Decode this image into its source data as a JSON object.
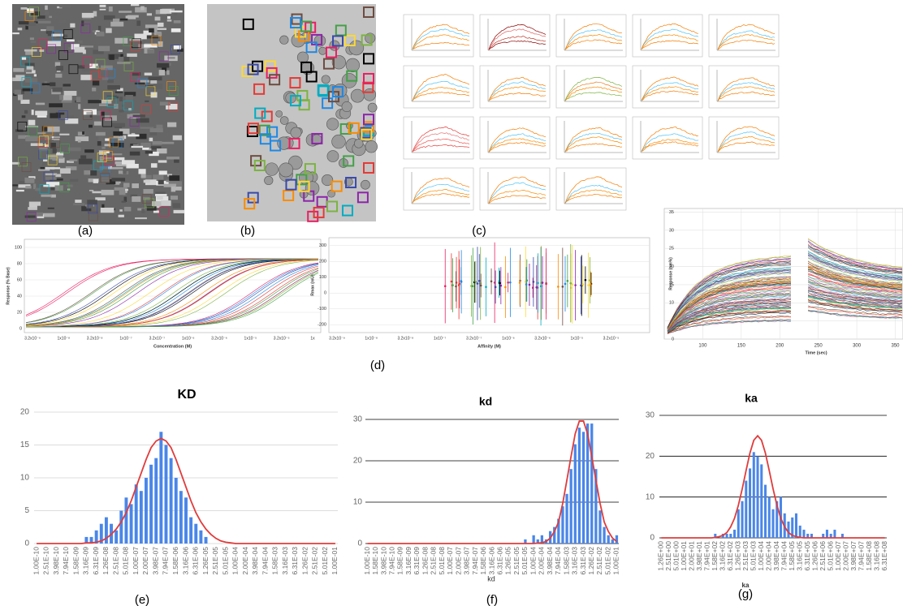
{
  "panels": {
    "a": "(a)",
    "b": "(b)",
    "c": "(c)",
    "d": "(d)",
    "e": "(e)",
    "f": "(f)",
    "g": "(g)"
  },
  "panel_d": [
    {
      "ylabel": "Response (% Base)",
      "xlabel": "Concentration (M)",
      "ylim": [
        -5,
        110
      ],
      "yticks": [
        0,
        20,
        40,
        60,
        80,
        100
      ],
      "xlabels": [
        "3.2x10⁻⁹",
        "1x10⁻⁸",
        "3.2x10⁻⁸",
        "1x10⁻⁷",
        "3.2x10⁻⁷",
        "1x10⁻⁶",
        "3.2x10⁻⁶",
        "1x10⁻⁵",
        "3.2x10⁻⁵",
        "1x"
      ]
    },
    {
      "ylabel": "Rmax (mU)",
      "xlabel": "Affinity (M)",
      "ylim": [
        -250,
        350
      ],
      "yticks": [
        -200,
        -100,
        0,
        100,
        200,
        300
      ],
      "xlabels": [
        "3.2x10⁻⁹",
        "1x10⁻⁸",
        "3.2x10⁻⁸",
        "1x10⁻⁷",
        "3.2x10⁻⁷",
        "1x10⁻⁶",
        "3.2x10⁻⁶",
        "1x10⁻⁵",
        "3.2x10⁻⁵"
      ]
    },
    {
      "ylabel": "Response (nm%)",
      "xlabel": "Time (sec)",
      "ylim": [
        0,
        36
      ],
      "yticks": [
        0,
        5,
        10,
        15,
        20,
        25,
        30,
        35
      ],
      "xlim": [
        50,
        360
      ],
      "xticks": [
        100,
        150,
        200,
        250,
        300,
        350
      ]
    }
  ],
  "chart_data": [
    {
      "type": "histogram",
      "title": "KD",
      "grid_color": "#d0d0d0",
      "ylim": [
        0,
        20
      ],
      "yticks": [
        0,
        5,
        10,
        15,
        20
      ],
      "categories": [
        "1.00E-10",
        null,
        "2.51E-10",
        null,
        "3.98E-10",
        null,
        "7.94E-10",
        null,
        "1.58E-09",
        null,
        "3.16E-09",
        null,
        "6.31E-09",
        null,
        "1.26E-08",
        null,
        "2.51E-08",
        null,
        "5.01E-08",
        null,
        "1.00E-07",
        null,
        "2.00E-07",
        null,
        "3.98E-07",
        null,
        "7.94E-07",
        null,
        "1.58E-06",
        null,
        "3.16E-06",
        null,
        "6.31E-06",
        null,
        "1.26E-05",
        null,
        "2.51E-05",
        null,
        "5.01E-05",
        null,
        "1.00E-04",
        null,
        "2.00E-04",
        null,
        "3.98E-04",
        null,
        "7.94E-04",
        null,
        "1.58E-03",
        null,
        "3.16E-03",
        null,
        "6.31E-03",
        null,
        "1.26E-02",
        null,
        "2.51E-02",
        null,
        "5.01E-02",
        null,
        "1.00E-01"
      ],
      "series": [
        {
          "color": "#4a86e8",
          "values": [
            0,
            0,
            0,
            0,
            0,
            0,
            0,
            0,
            0,
            0,
            1,
            1,
            2,
            3,
            4,
            3,
            2,
            5,
            7,
            6,
            9,
            8,
            10,
            12,
            13,
            17,
            15,
            13,
            10,
            8,
            7,
            4,
            3,
            2,
            1,
            0,
            0,
            0,
            0,
            0,
            0,
            0,
            0,
            0,
            0,
            0,
            0,
            0,
            0,
            0,
            0,
            0,
            0,
            0,
            0,
            0,
            0,
            0,
            0,
            0,
            0
          ]
        },
        {
          "color": "#e03c3c",
          "values": [
            0,
            0,
            0,
            0,
            0,
            0,
            0,
            0,
            0,
            0,
            0.1,
            0.1,
            0.2,
            0.4,
            0.8,
            1.4,
            2.2,
            3.3,
            4.7,
            6.5,
            8.6,
            10.7,
            12.8,
            14.6,
            15.6,
            16,
            15.6,
            14.6,
            12.8,
            10.7,
            8.6,
            6.5,
            4.7,
            3.3,
            2.2,
            1.4,
            0.8,
            0.4,
            0.2,
            0.1,
            0,
            0,
            0,
            0,
            0,
            0,
            0,
            0,
            0,
            0,
            0,
            0,
            0,
            0,
            0,
            0,
            0,
            0,
            0,
            0,
            0
          ]
        }
      ]
    },
    {
      "type": "histogram",
      "title": "kd",
      "xlabel": "kd",
      "grid_color": "#000000",
      "ylim": [
        0,
        30
      ],
      "yticks": [
        0,
        10,
        20,
        30
      ],
      "categories": [
        "1.00E-10",
        null,
        "1.58E-10",
        null,
        "3.98E-10",
        null,
        "7.94E-10",
        null,
        "1.58E-09",
        null,
        "3.16E-09",
        null,
        "6.31E-09",
        null,
        "1.26E-08",
        null,
        "2.51E-08",
        null,
        "5.01E-08",
        null,
        "1.00E-07",
        null,
        "2.00E-07",
        null,
        "3.98E-07",
        null,
        "7.94E-07",
        null,
        "1.58E-06",
        null,
        "3.16E-06",
        null,
        "6.31E-06",
        null,
        "1.26E-05",
        null,
        "2.51E-05",
        null,
        "5.01E-05",
        null,
        "1.00E-04",
        null,
        "2.00E-04",
        null,
        "3.98E-04",
        null,
        "7.94E-04",
        null,
        "1.58E-03",
        null,
        "3.16E-03",
        null,
        "6.31E-03",
        null,
        "1.26E-02",
        null,
        "2.51E-02",
        null,
        "5.01E-02",
        null,
        "1.00E-01"
      ],
      "series": [
        {
          "color": "#4a86e8",
          "values": [
            0,
            0,
            0,
            0,
            0,
            0,
            0,
            0,
            0,
            0,
            0,
            0,
            0,
            0,
            0,
            0,
            0,
            0,
            0,
            0,
            0,
            0,
            0,
            0,
            0,
            0,
            0,
            0,
            0,
            0,
            0,
            0,
            0,
            0,
            0,
            0,
            0,
            0,
            1,
            0,
            2,
            1,
            2,
            1,
            3,
            4,
            6,
            9,
            12,
            18,
            24,
            28,
            27,
            29,
            29,
            18,
            8,
            4,
            2,
            1,
            2
          ]
        },
        {
          "color": "#e03c3c",
          "values": [
            0,
            0,
            0,
            0,
            0,
            0,
            0,
            0,
            0,
            0,
            0,
            0,
            0,
            0,
            0,
            0,
            0,
            0,
            0,
            0,
            0,
            0,
            0,
            0,
            0,
            0,
            0,
            0,
            0,
            0,
            0,
            0,
            0,
            0,
            0,
            0,
            0,
            0,
            0,
            0,
            0,
            0.1,
            0.2,
            0.5,
            1.3,
            2.9,
            5.2,
            9.7,
            15.3,
            21,
            26.5,
            29.6,
            29.6,
            26.5,
            21,
            15.3,
            9.7,
            5.2,
            2.9,
            1.3,
            0.5
          ]
        }
      ]
    },
    {
      "type": "histogram",
      "title": "ka",
      "xlabel": "ka",
      "grid_color": "#000000",
      "ylim": [
        0,
        30
      ],
      "yticks": [
        0,
        10,
        20,
        30
      ],
      "categories": [
        "1.26E+00",
        null,
        "2.51E+00",
        null,
        "5.01E+00",
        null,
        "1.00E+01",
        null,
        "2.00E+01",
        null,
        "3.98E+01",
        null,
        "7.94E+01",
        null,
        "1.58E+02",
        null,
        "3.16E+02",
        null,
        "6.31E+02",
        null,
        "1.26E+03",
        null,
        "2.51E+03",
        null,
        "5.01E+03",
        null,
        "1.00E+04",
        null,
        "2.00E+04",
        null,
        "3.98E+04",
        null,
        "7.94E+04",
        null,
        "1.58E+05",
        null,
        "3.16E+05",
        null,
        "6.31E+05",
        null,
        "1.26E+06",
        null,
        "2.51E+06",
        null,
        "5.01E+06",
        null,
        "1.00E+07",
        null,
        "2.00E+07",
        null,
        "3.98E+07",
        null,
        "7.94E+07",
        null,
        "1.58E+08",
        null,
        "3.16E+08",
        null,
        "6.31E+08"
      ],
      "series": [
        {
          "color": "#4a86e8",
          "values": [
            0,
            0,
            0,
            0,
            0,
            0,
            0,
            0,
            0,
            0,
            0,
            0,
            0,
            0,
            1,
            0,
            1,
            1,
            1,
            2,
            7,
            9,
            14,
            17,
            21,
            20,
            18,
            13,
            10,
            7,
            9,
            10,
            6,
            4,
            5,
            6,
            3,
            2,
            1,
            1,
            0,
            0,
            1,
            2,
            1,
            2,
            0,
            1,
            0,
            0,
            0,
            0,
            0,
            0,
            0,
            0,
            0,
            0,
            0
          ]
        },
        {
          "color": "#e03c3c",
          "values": [
            0,
            0,
            0,
            0,
            0,
            0,
            0,
            0,
            0,
            0,
            0,
            0,
            0,
            0,
            0.1,
            0.3,
            0.6,
            1.3,
            2.7,
            4.8,
            8,
            12,
            16.5,
            20.8,
            23.9,
            25,
            23.9,
            20.8,
            16.5,
            12,
            8,
            4.8,
            2.7,
            1.3,
            0.6,
            0.3,
            0.1,
            0,
            0,
            0,
            0,
            0,
            0,
            0,
            0,
            0,
            0,
            0,
            0,
            0,
            0,
            0,
            0,
            0,
            0,
            0,
            0,
            0,
            0
          ]
        }
      ]
    }
  ]
}
